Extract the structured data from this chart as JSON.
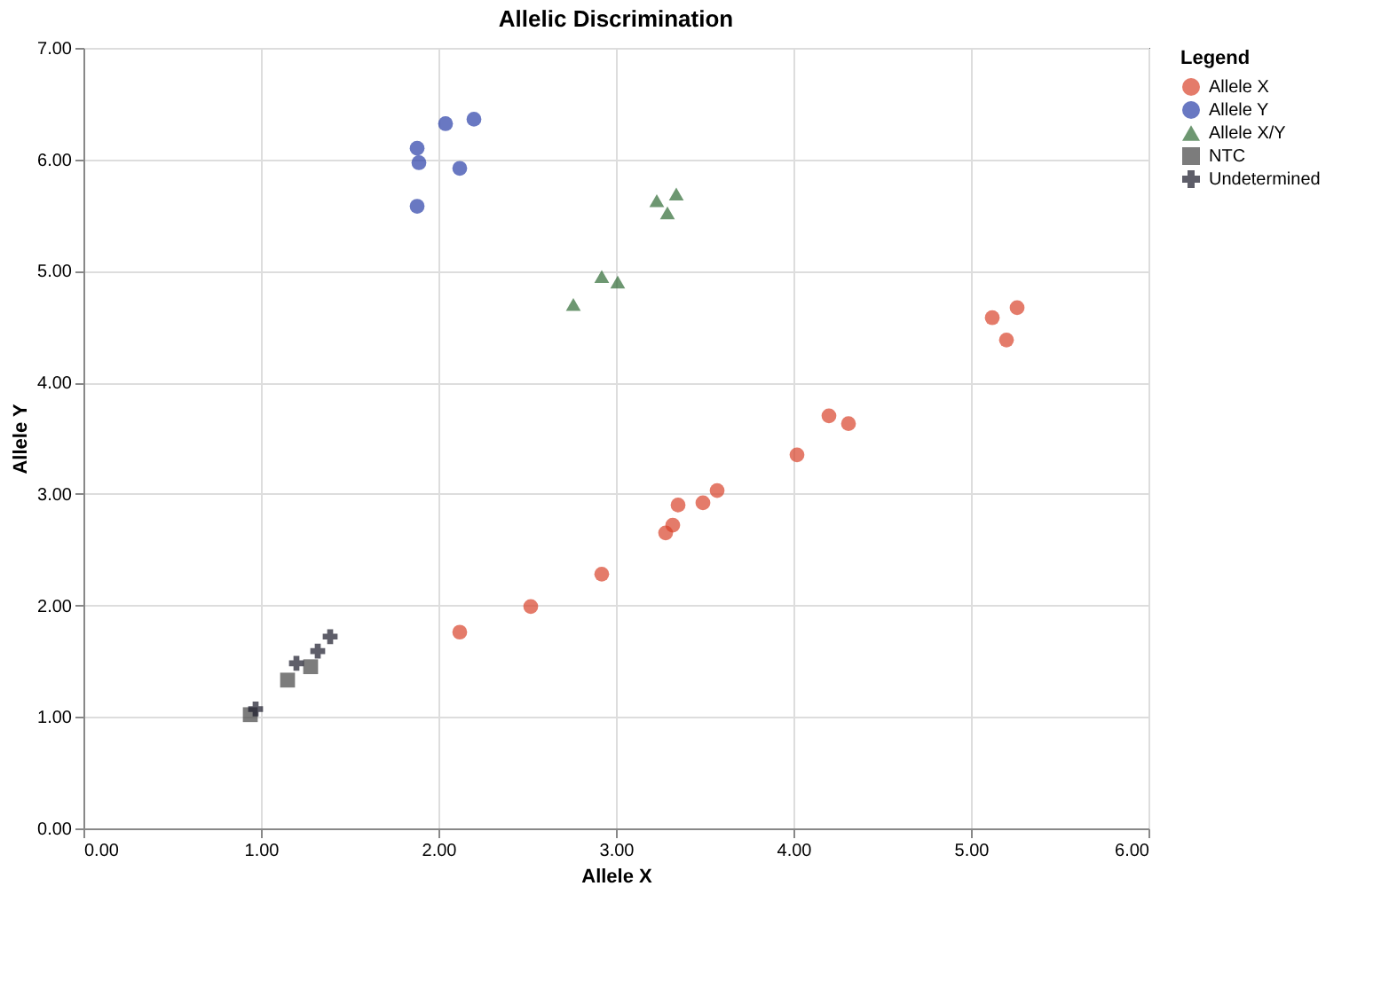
{
  "chart_data": {
    "type": "scatter",
    "title": "Allelic Discrimination",
    "xlabel": "Allele X",
    "ylabel": "Allele Y",
    "legend_title": "Legend",
    "legend": "top right",
    "grid": true,
    "xlim": [
      0,
      6
    ],
    "ylim": [
      0,
      7
    ],
    "xticks": [
      {
        "value": 0,
        "label": "0.00"
      },
      {
        "value": 1,
        "label": "1.00"
      },
      {
        "value": 2,
        "label": "2.00"
      },
      {
        "value": 3,
        "label": "3.00"
      },
      {
        "value": 4,
        "label": "4.00"
      },
      {
        "value": 5,
        "label": "5.00"
      },
      {
        "value": 6,
        "label": "6.00"
      }
    ],
    "yticks": [
      {
        "value": 0,
        "label": "0.00"
      },
      {
        "value": 1,
        "label": "1.00"
      },
      {
        "value": 2,
        "label": "2.00"
      },
      {
        "value": 3,
        "label": "3.00"
      },
      {
        "value": 4,
        "label": "4.00"
      },
      {
        "value": 5,
        "label": "5.00"
      },
      {
        "value": 6,
        "label": "6.00"
      },
      {
        "value": 7,
        "label": "7.00"
      }
    ],
    "series": [
      {
        "name": "Allele X",
        "color": "#d9432b",
        "marker": "circle",
        "x": [
          2.12,
          2.52,
          2.92,
          3.28,
          3.32,
          3.35,
          3.49,
          3.57,
          4.02,
          4.2,
          4.31,
          5.12,
          5.26,
          5.2
        ],
        "values": [
          1.76,
          1.99,
          2.28,
          2.65,
          2.72,
          2.9,
          2.92,
          3.03,
          3.35,
          3.7,
          3.63,
          4.58,
          4.67,
          4.38
        ]
      },
      {
        "name": "Allele Y",
        "color": "#2a3ea8",
        "marker": "circle",
        "x": [
          1.88,
          1.89,
          1.88,
          2.04,
          2.2,
          2.12
        ],
        "values": [
          6.1,
          5.97,
          5.58,
          6.32,
          6.36,
          5.92
        ]
      },
      {
        "name": "Allele X/Y",
        "color": "#2f6b35",
        "marker": "triangle",
        "x": [
          3.23,
          3.34,
          3.29,
          2.92,
          3.01,
          2.76
        ],
        "values": [
          5.63,
          5.69,
          5.52,
          4.95,
          4.9,
          4.7
        ]
      },
      {
        "name": "NTC",
        "color": "#444444",
        "marker": "square",
        "x": [
          0.94,
          1.15,
          1.28
        ],
        "values": [
          1.02,
          1.33,
          1.45
        ]
      },
      {
        "name": "Undetermined",
        "color": "#1a1a2a",
        "marker": "cross",
        "x": [
          0.97,
          1.2,
          1.32,
          1.39
        ],
        "values": [
          1.07,
          1.48,
          1.59,
          1.72
        ]
      }
    ]
  }
}
